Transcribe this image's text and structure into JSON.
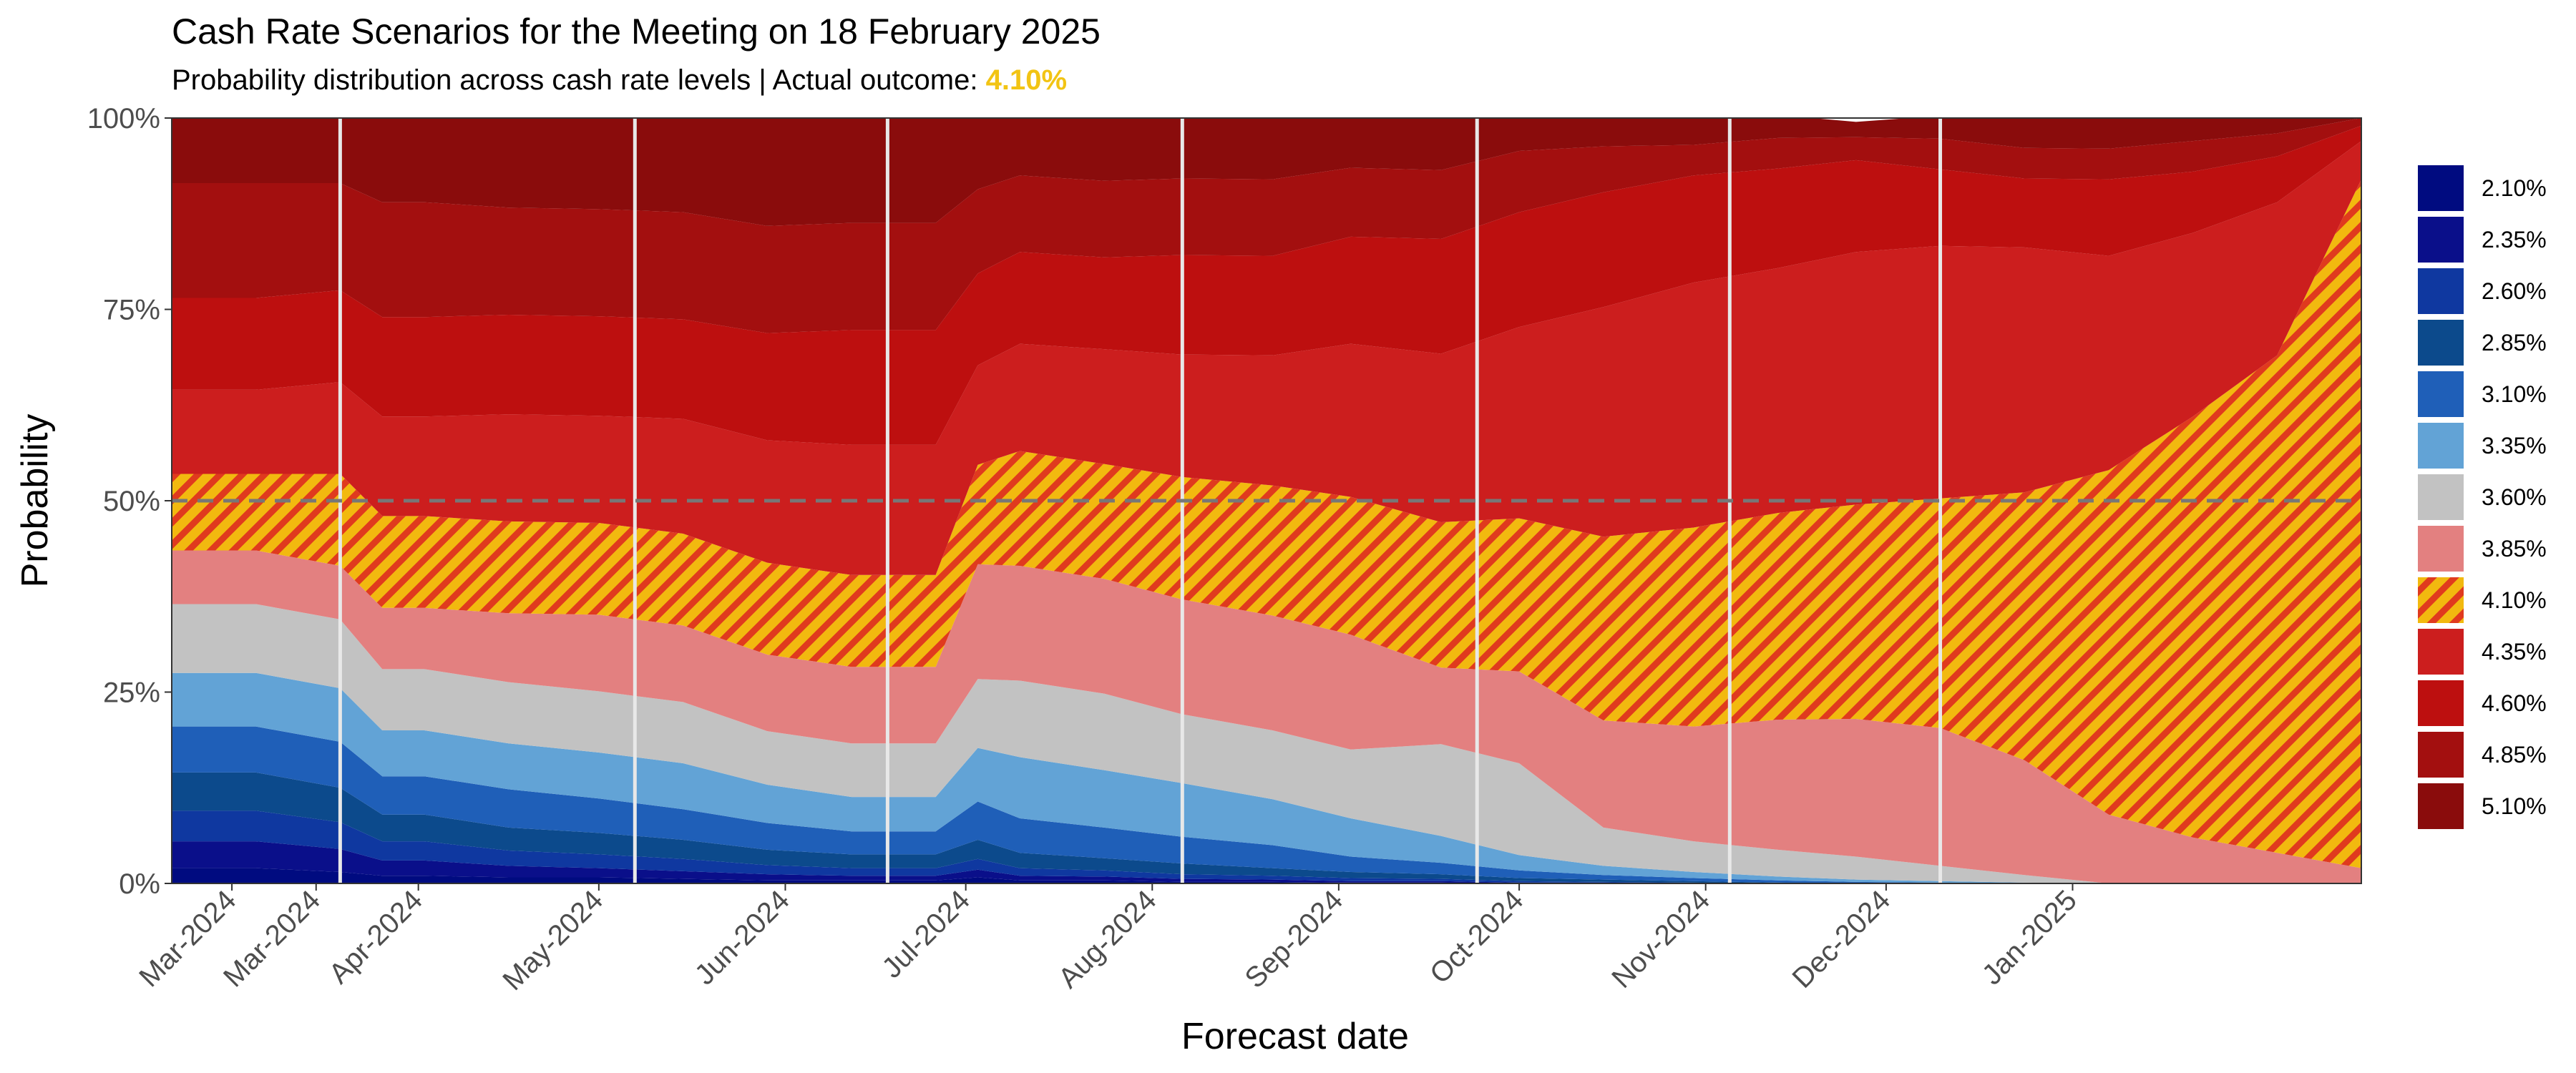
{
  "header": {
    "title": "Cash Rate Scenarios for the Meeting on 18 February 2025",
    "subtitle_prefix": "Probability distribution across cash rate levels | Actual outcome: ",
    "subtitle_highlight": "4.10%"
  },
  "colors": {
    "2.10%": "#000b80",
    "2.35%": "#0a0f8a",
    "2.60%": "#0f38a0",
    "2.85%": "#0c4a8c",
    "3.10%": "#1f5fb8",
    "3.35%": "#62a3d6",
    "3.60%": "#c2c2c2",
    "3.85%": "#e38080",
    "4.10%": "#f2b90f",
    "4.35%": "#cc1e1e",
    "4.60%": "#bd0f0f",
    "4.85%": "#a30f0f",
    "5.10%": "#8a0c0c",
    "hatch": "#e03a1e",
    "reference_line": "#777777",
    "meeting_line": "#e8e8e8"
  },
  "chart_data": {
    "type": "area",
    "stacked": true,
    "title": "Cash Rate Scenarios for the Meeting on 18 February 2025",
    "xlabel": "Forecast date",
    "ylabel": "Probability",
    "x": [
      "2024-02-20",
      "2024-03-05",
      "2024-03-19",
      "2024-03-26",
      "2024-04-02",
      "2024-04-16",
      "2024-05-01",
      "2024-05-15",
      "2024-05-29",
      "2024-06-12",
      "2024-06-26",
      "2024-07-03",
      "2024-07-10",
      "2024-07-24",
      "2024-08-06",
      "2024-08-21",
      "2024-09-03",
      "2024-09-18",
      "2024-10-01",
      "2024-10-15",
      "2024-10-30",
      "2024-11-13",
      "2024-11-26",
      "2024-12-10",
      "2024-12-24",
      "2025-01-07",
      "2025-01-21",
      "2025-02-04",
      "2025-02-18"
    ],
    "x_tick_labels": [
      "Mar-2024",
      "Mar-2024",
      "Apr-2024",
      "May-2024",
      "Jun-2024",
      "Jul-2024",
      "Aug-2024",
      "Sep-2024",
      "Oct-2024",
      "Nov-2024",
      "Dec-2024",
      "Jan-2025"
    ],
    "x_tick_dates": [
      "2024-03-01",
      "2024-03-15",
      "2024-04-01",
      "2024-05-01",
      "2024-06-01",
      "2024-07-01",
      "2024-08-01",
      "2024-09-01",
      "2024-10-01",
      "2024-11-01",
      "2024-12-01",
      "2025-01-01"
    ],
    "y_tick_labels": [
      "0%",
      "25%",
      "50%",
      "75%",
      "100%"
    ],
    "ylim": [
      0,
      1
    ],
    "reference_line_y": 0.5,
    "actual_outcome": "4.10%",
    "meeting_dates": [
      "2024-03-19",
      "2024-05-07",
      "2024-06-18",
      "2024-08-06",
      "2024-09-24",
      "2024-11-05",
      "2024-12-10"
    ],
    "series": [
      {
        "name": "2.10%",
        "values": [
          0.02,
          0.02,
          0.015,
          0.01,
          0.01,
          0.008,
          0.008,
          0.006,
          0.004,
          0.004,
          0.004,
          0.008,
          0.004,
          0.004,
          0.002,
          0.002,
          0.001,
          0.001,
          0,
          0,
          0,
          0,
          0,
          0,
          0,
          0,
          0,
          0,
          0
        ]
      },
      {
        "name": "2.35%",
        "values": [
          0.035,
          0.035,
          0.03,
          0.02,
          0.02,
          0.015,
          0.012,
          0.01,
          0.008,
          0.006,
          0.006,
          0.01,
          0.006,
          0.005,
          0.004,
          0.003,
          0.002,
          0.002,
          0.001,
          0.001,
          0,
          0,
          0,
          0,
          0,
          0,
          0,
          0,
          0
        ]
      },
      {
        "name": "2.60%",
        "values": [
          0.04,
          0.04,
          0.035,
          0.025,
          0.025,
          0.02,
          0.018,
          0.016,
          0.012,
          0.01,
          0.01,
          0.014,
          0.01,
          0.008,
          0.006,
          0.005,
          0.004,
          0.003,
          0.002,
          0.001,
          0.001,
          0,
          0,
          0,
          0,
          0,
          0,
          0,
          0
        ]
      },
      {
        "name": "2.85%",
        "values": [
          0.05,
          0.05,
          0.045,
          0.035,
          0.035,
          0.03,
          0.028,
          0.025,
          0.02,
          0.018,
          0.018,
          0.025,
          0.02,
          0.016,
          0.014,
          0.01,
          0.008,
          0.006,
          0.004,
          0.003,
          0.002,
          0.001,
          0,
          0,
          0,
          0,
          0,
          0,
          0
        ]
      },
      {
        "name": "3.10%",
        "values": [
          0.06,
          0.06,
          0.06,
          0.05,
          0.05,
          0.05,
          0.045,
          0.04,
          0.035,
          0.03,
          0.03,
          0.05,
          0.045,
          0.04,
          0.035,
          0.03,
          0.02,
          0.015,
          0.01,
          0.006,
          0.004,
          0.003,
          0.002,
          0.001,
          0,
          0,
          0,
          0,
          0
        ]
      },
      {
        "name": "3.35%",
        "values": [
          0.07,
          0.07,
          0.07,
          0.06,
          0.06,
          0.06,
          0.06,
          0.06,
          0.05,
          0.045,
          0.045,
          0.07,
          0.08,
          0.075,
          0.07,
          0.06,
          0.05,
          0.035,
          0.02,
          0.012,
          0.008,
          0.005,
          0.003,
          0.002,
          0.001,
          0,
          0,
          0,
          0
        ]
      },
      {
        "name": "3.60%",
        "values": [
          0.09,
          0.09,
          0.09,
          0.08,
          0.08,
          0.08,
          0.08,
          0.08,
          0.07,
          0.07,
          0.07,
          0.09,
          0.1,
          0.1,
          0.09,
          0.09,
          0.09,
          0.12,
          0.12,
          0.05,
          0.04,
          0.035,
          0.03,
          0.02,
          0.01,
          0,
          0,
          0,
          0
        ]
      },
      {
        "name": "3.85%",
        "values": [
          0.07,
          0.07,
          0.07,
          0.08,
          0.08,
          0.09,
          0.1,
          0.1,
          0.1,
          0.1,
          0.1,
          0.15,
          0.15,
          0.15,
          0.15,
          0.15,
          0.15,
          0.1,
          0.12,
          0.14,
          0.15,
          0.17,
          0.18,
          0.18,
          0.15,
          0.09,
          0.06,
          0.04,
          0.02
        ]
      },
      {
        "name": "4.10%",
        "values": [
          0.1,
          0.1,
          0.12,
          0.12,
          0.12,
          0.12,
          0.12,
          0.12,
          0.12,
          0.12,
          0.12,
          0.13,
          0.15,
          0.15,
          0.16,
          0.17,
          0.18,
          0.19,
          0.2,
          0.24,
          0.26,
          0.27,
          0.28,
          0.3,
          0.35,
          0.45,
          0.55,
          0.65,
          0.9
        ]
      },
      {
        "name": "4.35%",
        "values": [
          0.11,
          0.11,
          0.12,
          0.13,
          0.13,
          0.14,
          0.14,
          0.15,
          0.16,
          0.17,
          0.17,
          0.13,
          0.14,
          0.15,
          0.16,
          0.17,
          0.2,
          0.22,
          0.25,
          0.3,
          0.32,
          0.32,
          0.33,
          0.33,
          0.32,
          0.28,
          0.24,
          0.2,
          0.05
        ]
      },
      {
        "name": "4.60%",
        "values": [
          0.12,
          0.12,
          0.12,
          0.13,
          0.13,
          0.13,
          0.13,
          0.13,
          0.14,
          0.15,
          0.15,
          0.12,
          0.12,
          0.12,
          0.13,
          0.13,
          0.14,
          0.15,
          0.15,
          0.15,
          0.14,
          0.13,
          0.12,
          0.1,
          0.09,
          0.1,
          0.08,
          0.06,
          0.02
        ]
      },
      {
        "name": "4.85%",
        "values": [
          0.15,
          0.15,
          0.14,
          0.15,
          0.15,
          0.14,
          0.14,
          0.14,
          0.14,
          0.14,
          0.14,
          0.11,
          0.1,
          0.1,
          0.1,
          0.1,
          0.09,
          0.09,
          0.08,
          0.06,
          0.04,
          0.04,
          0.03,
          0.04,
          0.04,
          0.04,
          0.04,
          0.03,
          0.01
        ]
      },
      {
        "name": "5.10%",
        "values": [
          0.17,
          0.17,
          0.17,
          0.2,
          0.2,
          0.2,
          0.2,
          0.2,
          0.2,
          0.2,
          0.2,
          0.17,
          0.14,
          0.14,
          0.13,
          0.12,
          0.1,
          0.09,
          0.07,
          0.05,
          0.04,
          0.03,
          0.02,
          0.03,
          0.04,
          0.04,
          0.03,
          0.02,
          0
        ]
      }
    ],
    "legend": {
      "position": "right",
      "entries": [
        "2.10%",
        "2.35%",
        "2.60%",
        "2.85%",
        "3.10%",
        "3.35%",
        "3.60%",
        "3.85%",
        "4.10%",
        "4.35%",
        "4.60%",
        "4.85%",
        "5.10%"
      ]
    }
  }
}
